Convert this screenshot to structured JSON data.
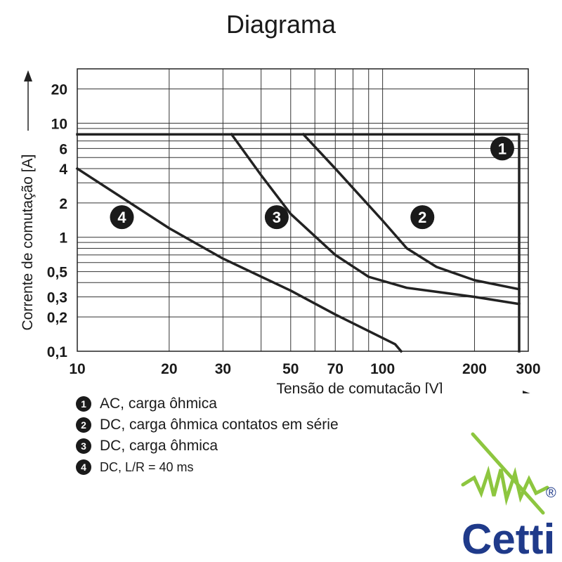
{
  "title": "Diagrama",
  "chart_data": {
    "type": "line",
    "xscale": "log",
    "yscale": "log",
    "xlim": [
      10,
      300
    ],
    "ylim": [
      0.1,
      30
    ],
    "xlabel": "Tensão de comutação [V]",
    "ylabel": "Corrente de comutação [A]",
    "x_ticks": [
      10,
      20,
      30,
      50,
      70,
      100,
      200,
      300
    ],
    "x_tick_labels": [
      "10",
      "20",
      "30",
      "50",
      "70",
      "100",
      "200",
      "300"
    ],
    "y_ticks": [
      0.1,
      0.2,
      0.3,
      0.5,
      1,
      2,
      4,
      6,
      10,
      20
    ],
    "y_tick_labels": [
      "0,1",
      "0,2",
      "0,3",
      "0,5",
      "1",
      "2",
      "4",
      "6",
      "10",
      "20"
    ],
    "grid": true,
    "series": [
      {
        "name": "1",
        "x": [
          10,
          280,
          280
        ],
        "y": [
          8,
          8,
          0.1
        ]
      },
      {
        "name": "2",
        "x": [
          55,
          70,
          100,
          120,
          150,
          200,
          280
        ],
        "y": [
          8,
          4,
          1.4,
          0.8,
          0.55,
          0.42,
          0.35
        ]
      },
      {
        "name": "3",
        "x": [
          32,
          40,
          50,
          70,
          90,
          120,
          200,
          280
        ],
        "y": [
          8,
          3.5,
          1.6,
          0.7,
          0.45,
          0.36,
          0.3,
          0.26
        ]
      },
      {
        "name": "4",
        "x": [
          10,
          20,
          30,
          50,
          70,
          110,
          115
        ],
        "y": [
          4,
          1.2,
          0.65,
          0.34,
          0.21,
          0.115,
          0.1
        ]
      }
    ],
    "markers": [
      {
        "label": "1",
        "x": 280,
        "y": 6
      },
      {
        "label": "2",
        "x": 135,
        "y": 1.5
      },
      {
        "label": "3",
        "x": 45,
        "y": 1.5
      },
      {
        "label": "4",
        "x": 14,
        "y": 1.5
      }
    ]
  },
  "legend": [
    {
      "num": "1",
      "text": "AC, carga ôhmica"
    },
    {
      "num": "2",
      "text": "DC, carga ôhmica contatos em série"
    },
    {
      "num": "3",
      "text": "DC, carga ôhmica"
    },
    {
      "num": "4",
      "text": "DC, L/R = 40 ms"
    }
  ],
  "logo": {
    "text": "Cetti",
    "registered": "®",
    "color": "#1f3a8a",
    "accent": "#8dc63f"
  }
}
